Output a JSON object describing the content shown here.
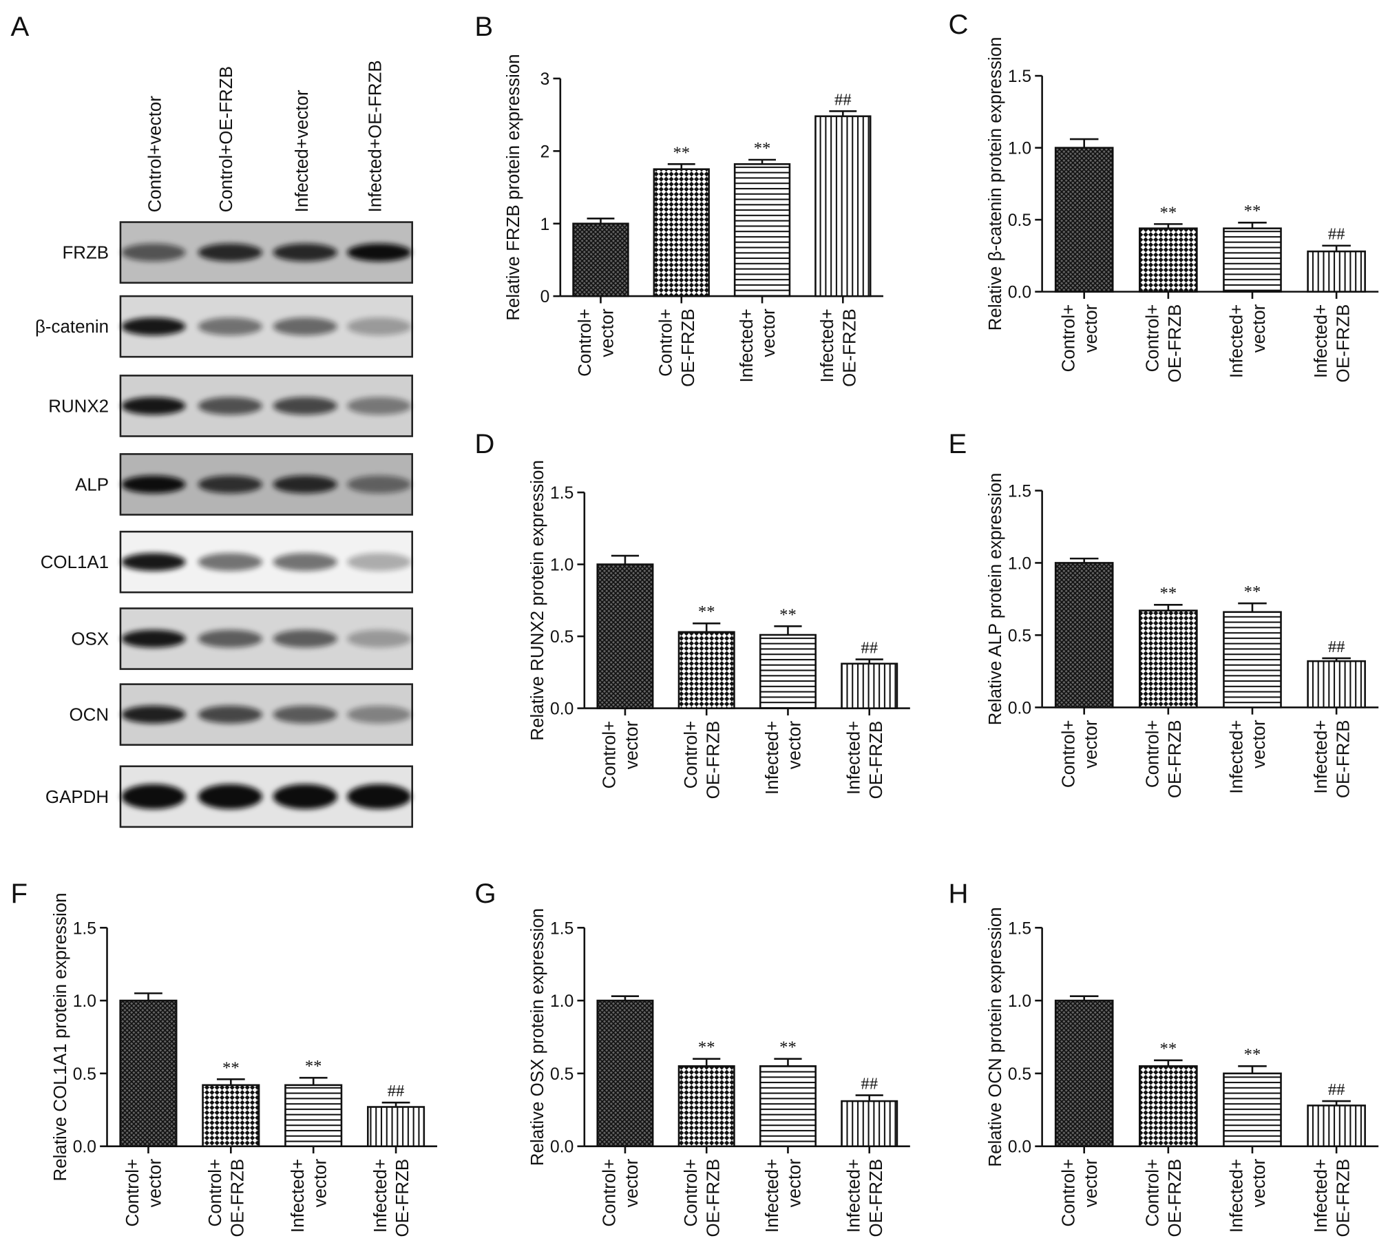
{
  "blot": {
    "label": "A",
    "lanes": [
      "Control+vector",
      "Control+OE-FRZB",
      "Infected+vector",
      "Infected+OE-FRZB"
    ],
    "proteins": [
      "FRZB",
      "β-catenin",
      "RUNX2",
      "ALP",
      "COL1A1",
      "OSX",
      "OCN",
      "GAPDH"
    ]
  },
  "chart_data": [
    {
      "type": "bar",
      "label": "B",
      "ylabel": "Relative FRZB protein expression",
      "categories": [
        [
          "Control+",
          "vector"
        ],
        [
          "Control+",
          "OE-FRZB"
        ],
        [
          "Infected+",
          "vector"
        ],
        [
          "Infected+",
          "OE-FRZB"
        ]
      ],
      "values": [
        1.0,
        1.75,
        1.82,
        2.48
      ],
      "errors": [
        0.07,
        0.07,
        0.06,
        0.07
      ],
      "annotations": [
        null,
        "**",
        "**",
        "##"
      ],
      "patterns": [
        "crosshatch",
        "checker",
        "hstripes",
        "vstripes"
      ],
      "ylim": [
        0,
        3
      ],
      "yticks": [
        0,
        1,
        2,
        3
      ]
    },
    {
      "type": "bar",
      "label": "C",
      "ylabel": "Relative β-catenin protein expression",
      "categories": [
        [
          "Control+",
          "vector"
        ],
        [
          "Control+",
          "OE-FRZB"
        ],
        [
          "Infected+",
          "vector"
        ],
        [
          "Infected+",
          "OE-FRZB"
        ]
      ],
      "values": [
        1.0,
        0.44,
        0.44,
        0.28
      ],
      "errors": [
        0.06,
        0.03,
        0.04,
        0.04
      ],
      "annotations": [
        null,
        "**",
        "**",
        "##"
      ],
      "patterns": [
        "crosshatch",
        "checker",
        "hstripes",
        "vstripes"
      ],
      "ylim": [
        0,
        1.5
      ],
      "yticks": [
        {
          "value": 0,
          "label": "0.0"
        },
        0.5,
        {
          "value": 1,
          "label": "1.0"
        },
        1.5
      ]
    },
    {
      "type": "bar",
      "label": "D",
      "ylabel": "Relative RUNX2 protein expression",
      "categories": [
        [
          "Control+",
          "vector"
        ],
        [
          "Control+",
          "OE-FRZB"
        ],
        [
          "Infected+",
          "vector"
        ],
        [
          "Infected+",
          "OE-FRZB"
        ]
      ],
      "values": [
        1.0,
        0.53,
        0.51,
        0.31
      ],
      "errors": [
        0.06,
        0.06,
        0.06,
        0.03
      ],
      "annotations": [
        null,
        "**",
        "**",
        "##"
      ],
      "patterns": [
        "crosshatch",
        "checker",
        "hstripes",
        "vstripes"
      ],
      "ylim": [
        0,
        1.5
      ],
      "yticks": [
        {
          "value": 0,
          "label": "0.0"
        },
        0.5,
        {
          "value": 1,
          "label": "1.0"
        },
        1.5
      ]
    },
    {
      "type": "bar",
      "label": "E",
      "ylabel": "Relative ALP protein expression",
      "categories": [
        [
          "Control+",
          "vector"
        ],
        [
          "Control+",
          "OE-FRZB"
        ],
        [
          "Infected+",
          "vector"
        ],
        [
          "Infected+",
          "OE-FRZB"
        ]
      ],
      "values": [
        1.0,
        0.67,
        0.66,
        0.32
      ],
      "errors": [
        0.03,
        0.04,
        0.06,
        0.02
      ],
      "annotations": [
        null,
        "**",
        "**",
        "##"
      ],
      "patterns": [
        "crosshatch",
        "checker",
        "hstripes",
        "vstripes"
      ],
      "ylim": [
        0,
        1.5
      ],
      "yticks": [
        {
          "value": 0,
          "label": "0.0"
        },
        0.5,
        {
          "value": 1,
          "label": "1.0"
        },
        1.5
      ]
    },
    {
      "type": "bar",
      "label": "F",
      "ylabel": "Relative COL1A1 protein expression",
      "categories": [
        [
          "Control+",
          "vector"
        ],
        [
          "Control+",
          "OE-FRZB"
        ],
        [
          "Infected+",
          "vector"
        ],
        [
          "Infected+",
          "OE-FRZB"
        ]
      ],
      "values": [
        1.0,
        0.42,
        0.42,
        0.27
      ],
      "errors": [
        0.05,
        0.04,
        0.05,
        0.03
      ],
      "annotations": [
        null,
        "**",
        "**",
        "##"
      ],
      "patterns": [
        "crosshatch",
        "checker",
        "hstripes",
        "vstripes"
      ],
      "ylim": [
        0,
        1.5
      ],
      "yticks": [
        {
          "value": 0,
          "label": "0.0"
        },
        0.5,
        {
          "value": 1,
          "label": "1.0"
        },
        1.5
      ]
    },
    {
      "type": "bar",
      "label": "G",
      "ylabel": "Relative OSX protein expression",
      "categories": [
        [
          "Control+",
          "vector"
        ],
        [
          "Control+",
          "OE-FRZB"
        ],
        [
          "Infected+",
          "vector"
        ],
        [
          "Infected+",
          "OE-FRZB"
        ]
      ],
      "values": [
        1.0,
        0.55,
        0.55,
        0.31
      ],
      "errors": [
        0.03,
        0.05,
        0.05,
        0.04
      ],
      "annotations": [
        null,
        "**",
        "**",
        "##"
      ],
      "patterns": [
        "crosshatch",
        "checker",
        "hstripes",
        "vstripes"
      ],
      "ylim": [
        0,
        1.5
      ],
      "yticks": [
        {
          "value": 0,
          "label": "0.0"
        },
        0.5,
        {
          "value": 1,
          "label": "1.0"
        },
        1.5
      ]
    },
    {
      "type": "bar",
      "label": "H",
      "ylabel": "Relative OCN protein expression",
      "categories": [
        [
          "Control+",
          "vector"
        ],
        [
          "Control+",
          "OE-FRZB"
        ],
        [
          "Infected+",
          "vector"
        ],
        [
          "Infected+",
          "OE-FRZB"
        ]
      ],
      "values": [
        1.0,
        0.55,
        0.5,
        0.28
      ],
      "errors": [
        0.03,
        0.04,
        0.05,
        0.03
      ],
      "annotations": [
        null,
        "**",
        "**",
        "##"
      ],
      "patterns": [
        "crosshatch",
        "checker",
        "hstripes",
        "vstripes"
      ],
      "ylim": [
        0,
        1.5
      ],
      "yticks": [
        {
          "value": 0,
          "label": "0.0"
        },
        0.5,
        {
          "value": 1,
          "label": "1.0"
        },
        1.5
      ]
    }
  ]
}
